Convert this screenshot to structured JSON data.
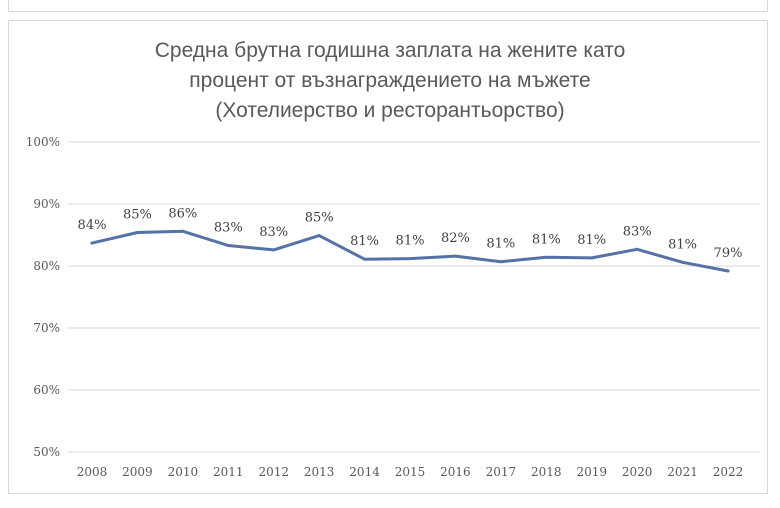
{
  "chart_data": {
    "type": "line",
    "title": "Средна брутна годишна заплата на жените като процент от възнаграждението на мъжете (Хотелиерство и ресторантьорство)",
    "title_lines": [
      "Средна брутна годишна заплата на жените като",
      "процент от възнаграждението на мъжете",
      "(Хотелиерство и ресторантьорство)"
    ],
    "categories": [
      "2008",
      "2009",
      "2010",
      "2011",
      "2012",
      "2013",
      "2014",
      "2015",
      "2016",
      "2017",
      "2018",
      "2019",
      "2020",
      "2021",
      "2022"
    ],
    "series": [
      {
        "values": [
          83.7,
          85.4,
          85.6,
          83.3,
          82.6,
          84.9,
          81.1,
          81.2,
          81.6,
          80.7,
          81.4,
          81.3,
          82.7,
          80.6,
          79.2
        ],
        "labels": [
          "84%",
          "85%",
          "86%",
          "83%",
          "83%",
          "85%",
          "81%",
          "81%",
          "82%",
          "81%",
          "81%",
          "81%",
          "83%",
          "81%",
          "79%"
        ],
        "color": "#5572a6"
      }
    ],
    "ylim": [
      50,
      100
    ],
    "yticks": [
      {
        "value": 50,
        "label": "50%"
      },
      {
        "value": 60,
        "label": "60%"
      },
      {
        "value": 70,
        "label": "70%"
      },
      {
        "value": 80,
        "label": "80%"
      },
      {
        "value": 90,
        "label": "90%"
      },
      {
        "value": 100,
        "label": "100%"
      }
    ],
    "grid": true,
    "grid_color": "#d9d9d9",
    "xlabel": "",
    "ylabel": ""
  }
}
